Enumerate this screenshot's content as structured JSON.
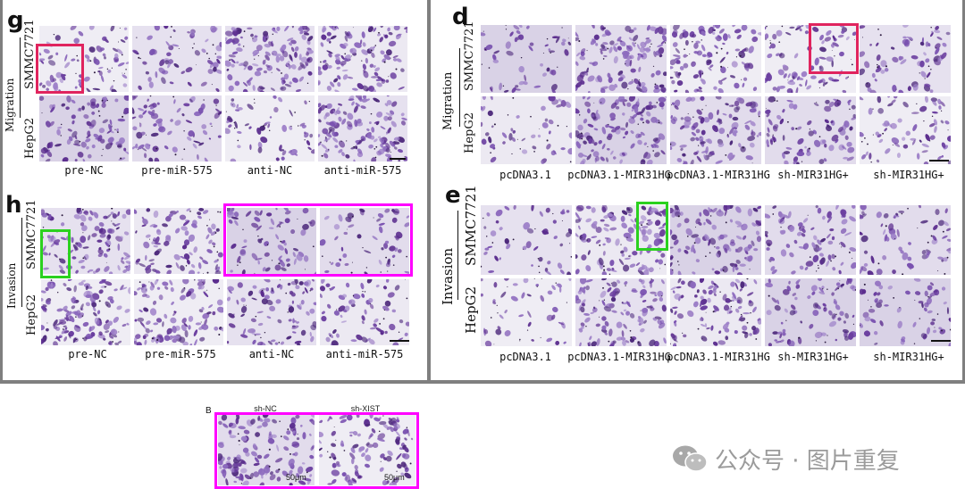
{
  "panels": {
    "g": {
      "letter": "g",
      "row_group": "Migration",
      "rows": [
        "SMMC7721",
        "HepG2"
      ],
      "columns": [
        "pre-NC",
        "pre-miR-575",
        "anti-NC",
        "anti-miR-575"
      ]
    },
    "h": {
      "letter": "h",
      "row_group": "Invasion",
      "rows": [
        "SMMC7721",
        "HepG2"
      ],
      "columns": [
        "pre-NC",
        "pre-miR-575",
        "anti-NC",
        "anti-miR-575"
      ]
    },
    "d": {
      "letter": "d",
      "row_group": "Migration",
      "rows": [
        "SMMC7721",
        "HepG2"
      ],
      "columns": [
        "pcDNA3.1",
        "pcDNA3.1-MIR31HG",
        "pcDNA3.1-MIR31HG",
        "sh-MIR31HG+",
        "sh-MIR31HG+"
      ]
    },
    "e": {
      "letter": "e",
      "row_group": "Invasion",
      "rows": [
        "SMMC7721",
        "HepG2"
      ],
      "columns": [
        "pcDNA3.1",
        "pcDNA3.1-MIR31HG",
        "pcDNA3.1-MIR31HG",
        "sh-MIR31HG+",
        "sh-MIR31HG+"
      ]
    },
    "b": {
      "letter": "B",
      "columns": [
        "sh-NC",
        "sh-XIST"
      ],
      "scale": "50μm"
    }
  },
  "watermark": {
    "text": "公众号 · 图片重复",
    "icon": "wechat-icon"
  },
  "colors": {
    "highlight_red": "#e0245e",
    "highlight_green": "#2bd11f",
    "highlight_magenta": "#ff00ff",
    "divider": "#7f7f7f",
    "stain": "#6b3fa0"
  }
}
